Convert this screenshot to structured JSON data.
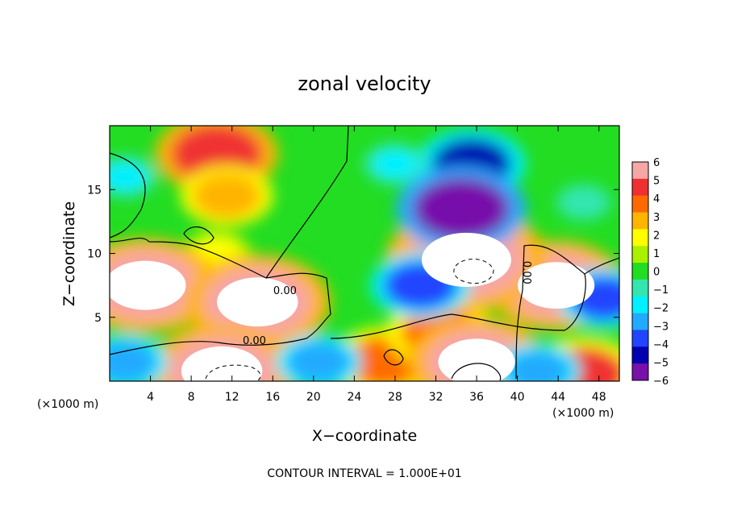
{
  "chart_data": {
    "type": "heatmap",
    "title": "zonal velocity",
    "xlabel": "X−coordinate",
    "ylabel": "Z−coordinate",
    "x_unit_left": "(×1000 m)",
    "x_unit_right": "(×1000 m)",
    "footer": "CONTOUR INTERVAL = 1.000E+01",
    "xlim": [
      0,
      50
    ],
    "ylim": [
      0,
      20
    ],
    "x_ticks": [
      4,
      8,
      12,
      16,
      20,
      24,
      28,
      32,
      36,
      40,
      44,
      48
    ],
    "y_ticks": [
      5,
      10,
      15
    ],
    "colorbar": {
      "min": -6,
      "max": 6,
      "levels": [
        6,
        5,
        4,
        3,
        2,
        1,
        0,
        -1,
        -2,
        -3,
        -4,
        -5,
        -6
      ],
      "colors": [
        "#f7a6a6",
        "#f03030",
        "#ff6a00",
        "#ffb400",
        "#ffff00",
        "#aaf000",
        "#22dd22",
        "#33e6b0",
        "#00f0ff",
        "#22aaff",
        "#2244ff",
        "#0000b0",
        "#7711aa"
      ],
      "saturated_color": "#ffffff"
    },
    "contour_labels": [
      {
        "text": "0.00",
        "x": 17.2,
        "y": 6.8
      },
      {
        "text": "0.00",
        "x": 14.2,
        "y": 2.9
      },
      {
        "text": "0.00",
        "x": 40.6,
        "y": 8.5
      }
    ],
    "features": [
      {
        "x": 10.5,
        "y": 17.8,
        "value": 5.5
      },
      {
        "x": 11.5,
        "y": 14.5,
        "value": 3.5
      },
      {
        "x": 10.5,
        "y": 10.0,
        "value": 2.0
      },
      {
        "x": 3.5,
        "y": 7.5,
        "value": 7.0
      },
      {
        "x": 14.5,
        "y": 6.2,
        "value": 7.0
      },
      {
        "x": 11.0,
        "y": 0.8,
        "value": 7.0
      },
      {
        "x": 27.0,
        "y": 1.5,
        "value": 4.5
      },
      {
        "x": 32.5,
        "y": 3.8,
        "value": 4.5
      },
      {
        "x": 36.0,
        "y": 1.5,
        "value": 6.5
      },
      {
        "x": 43.8,
        "y": 7.5,
        "value": 6.5
      },
      {
        "x": 35.0,
        "y": 9.5,
        "value": 8.0
      },
      {
        "x": 46.5,
        "y": 0.5,
        "value": 5.0
      },
      {
        "x": 35.5,
        "y": 17.0,
        "value": -4.5
      },
      {
        "x": 34.5,
        "y": 13.5,
        "value": -6.0
      },
      {
        "x": 30.5,
        "y": 7.5,
        "value": -4.0
      },
      {
        "x": 48.5,
        "y": 6.5,
        "value": -3.5
      },
      {
        "x": 1.5,
        "y": 16.0,
        "value": -1.5
      },
      {
        "x": 28.0,
        "y": 17.0,
        "value": -1.5
      },
      {
        "x": 1.5,
        "y": 1.5,
        "value": -3.0
      },
      {
        "x": 20.5,
        "y": 1.5,
        "value": -3.0
      },
      {
        "x": 42.0,
        "y": 0.8,
        "value": -3.0
      },
      {
        "x": 46.5,
        "y": 14.0,
        "value": -1.0
      }
    ]
  }
}
